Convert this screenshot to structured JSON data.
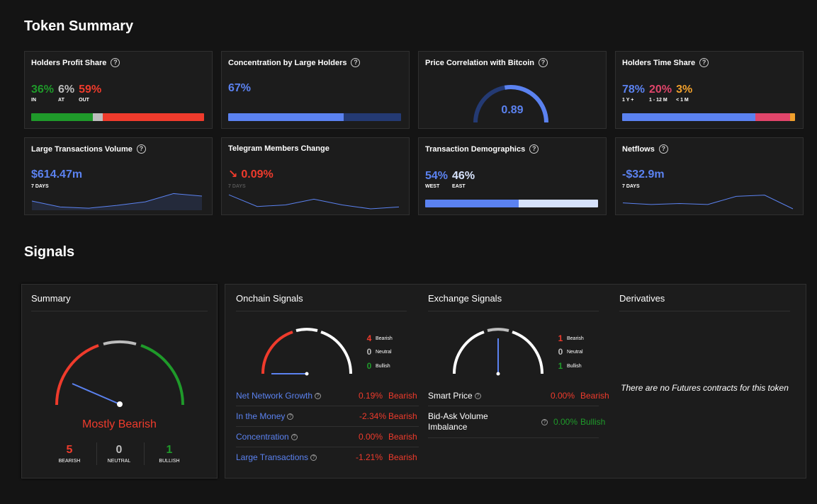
{
  "token_summary": {
    "title": "Token Summary",
    "holders_profit": {
      "title": "Holders Profit Share",
      "in": "36%",
      "in_label": "IN",
      "at": "6%",
      "at_label": "AT",
      "out": "59%",
      "out_label": "OUT",
      "bar_fractions": [
        0.36,
        0.06,
        0.59
      ],
      "colors": [
        "#1f9a2a",
        "#bdbdbd",
        "#ef3b2c"
      ]
    },
    "concentration": {
      "title": "Concentration by Large Holders",
      "value": "67%",
      "fill_fraction": 0.67,
      "colors": [
        "#5b82f0",
        "#243a73"
      ]
    },
    "price_correlation": {
      "title": "Price Correlation with Bitcoin",
      "value": "0.89",
      "gauge_fraction": 0.445
    },
    "holders_time": {
      "title": "Holders Time Share",
      "v1": "78%",
      "l1": "1 Y +",
      "v2": "20%",
      "l2": "1 - 12 M",
      "v3": "3%",
      "l3": "< 1 M",
      "bar_fractions": [
        0.78,
        0.2,
        0.03
      ],
      "colors": [
        "#5b82f0",
        "#e0456a",
        "#f0a02c"
      ]
    },
    "large_tx": {
      "title": "Large Transactions Volume",
      "value": "$614.47m",
      "period": "7 DAYS",
      "spark": [
        0.5,
        0.12,
        0.04,
        0.22,
        0.45,
        0.98,
        0.82
      ]
    },
    "telegram": {
      "title": "Telegram Members Change",
      "arrow": "↘",
      "value": "0.09%",
      "period": "7 DAYS",
      "spark": [
        0.9,
        0.15,
        0.25,
        0.62,
        0.25,
        0.0,
        0.12
      ]
    },
    "tx_demographics": {
      "title": "Transaction Demographics",
      "west": "54%",
      "west_label": "WEST",
      "east": "46%",
      "east_label": "EAST",
      "bar_fractions": [
        0.54,
        0.46
      ],
      "colors": [
        "#5b82f0",
        "#d6e2fb"
      ]
    },
    "netflows": {
      "title": "Netflows",
      "value": "-$32.9m",
      "period": "7 DAYS",
      "spark": [
        0.38,
        0.28,
        0.34,
        0.28,
        0.8,
        0.88,
        0.0
      ]
    }
  },
  "signals": {
    "title": "Signals",
    "summary": {
      "title": "Summary",
      "verdict": "Mostly Bearish",
      "bearish": "5",
      "bearish_label": "BEARISH",
      "neutral": "0",
      "neutral_label": "NEUTRAL",
      "bullish": "1",
      "bullish_label": "BULLISH"
    },
    "onchain": {
      "title": "Onchain Signals",
      "bearish": "4",
      "bearish_label": "Bearish",
      "neutral": "0",
      "neutral_label": "Neutral",
      "bullish": "0",
      "bullish_label": "Bullish",
      "rows": [
        {
          "name": "Net Network Growth",
          "pct": "0.19%",
          "status": "Bearish"
        },
        {
          "name": "In the Money",
          "pct": "-2.34%",
          "status": "Bearish"
        },
        {
          "name": "Concentration",
          "pct": "0.00%",
          "status": "Bearish"
        },
        {
          "name": "Large Transactions",
          "pct": "-1.21%",
          "status": "Bearish"
        }
      ]
    },
    "exchange": {
      "title": "Exchange Signals",
      "bearish": "1",
      "bearish_label": "Bearish",
      "neutral": "0",
      "neutral_label": "Neutral",
      "bullish": "1",
      "bullish_label": "Bullish",
      "rows": [
        {
          "name": "Smart Price",
          "pct": "0.00%",
          "status": "Bearish"
        },
        {
          "name": "Bid-Ask Volume Imbalance",
          "pct": "0.00%",
          "status": "Bullish"
        }
      ]
    },
    "derivatives": {
      "title": "Derivatives",
      "empty_message": "There are no Futures contracts for this token"
    }
  },
  "colors": {
    "background": "#141414",
    "card": "#1c1c1c",
    "blue": "#5b82f0",
    "red": "#ef3b2c",
    "green": "#1f9a2a",
    "grey": "#bdbdbd",
    "pink": "#e0456a",
    "orange": "#f0a02c"
  }
}
